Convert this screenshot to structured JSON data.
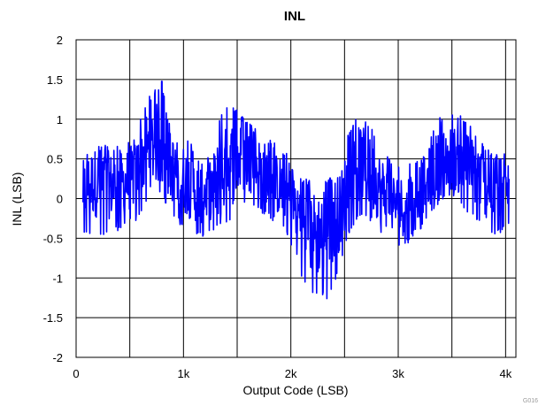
{
  "chart_data": {
    "type": "line",
    "title": "INL",
    "xlabel": "Output Code (LSB)",
    "ylabel": "INL (LSB)",
    "xlim": [
      0,
      4096
    ],
    "ylim": [
      -2,
      2
    ],
    "grid": true,
    "x_ticks": [
      0,
      1000,
      2000,
      3000,
      4000
    ],
    "x_tick_labels": [
      "0",
      "1k",
      "2k",
      "3k",
      "4k"
    ],
    "y_ticks": [
      2,
      1.5,
      1,
      0.5,
      0,
      -0.5,
      -1,
      -1.5,
      -2
    ],
    "y_tick_labels": [
      "2",
      "1.5",
      "1",
      "0.5",
      "0",
      "-0.5",
      "-1",
      "-1.5",
      "-2"
    ],
    "series_color": "#0000ff",
    "series": [
      {
        "x": [
          64,
          150,
          250,
          350,
          450,
          550,
          650,
          750,
          800,
          850,
          950,
          1050,
          1150,
          1250,
          1350,
          1450,
          1550,
          1650,
          1750,
          1850,
          1950,
          2050,
          2150,
          2250,
          2350,
          2450,
          2550,
          2650,
          2750,
          2850,
          2950,
          3050,
          3150,
          3250,
          3350,
          3450,
          3550,
          3650,
          3750,
          3850,
          3950,
          4032
        ],
        "values": [
          0.1,
          0.2,
          0.2,
          0.15,
          0.2,
          0.3,
          0.6,
          0.7,
          0.65,
          0.45,
          0.3,
          0.2,
          0.05,
          0.1,
          0.3,
          0.45,
          0.5,
          0.45,
          0.35,
          0.2,
          0.1,
          -0.1,
          -0.4,
          -0.45,
          -0.3,
          -0.2,
          0.3,
          0.45,
          0.3,
          0.1,
          -0.05,
          -0.1,
          0.05,
          0.2,
          0.4,
          0.5,
          0.5,
          0.4,
          0.3,
          0.1,
          0.1,
          0.15
        ],
        "upper": [
          0.5,
          0.7,
          0.7,
          0.65,
          0.7,
          0.8,
          1.25,
          1.4,
          1.5,
          1.0,
          0.8,
          0.75,
          0.5,
          0.55,
          1.1,
          1.2,
          1.05,
          0.9,
          0.8,
          0.7,
          0.6,
          0.3,
          0.25,
          0.2,
          0.25,
          0.35,
          0.9,
          1.1,
          0.9,
          0.65,
          0.45,
          0.35,
          0.5,
          0.6,
          1.0,
          1.05,
          1.1,
          0.95,
          0.8,
          0.6,
          0.55,
          0.6
        ],
        "lower": [
          -0.5,
          -0.45,
          -0.5,
          -0.45,
          -0.35,
          -0.3,
          -0.05,
          0.05,
          0.1,
          -0.2,
          -0.3,
          -0.45,
          -0.5,
          -0.45,
          -0.35,
          -0.25,
          -0.1,
          -0.1,
          -0.2,
          -0.3,
          -0.45,
          -0.75,
          -1.2,
          -1.2,
          -1.3,
          -0.9,
          -0.4,
          -0.2,
          -0.3,
          -0.5,
          -0.55,
          -0.65,
          -0.45,
          -0.35,
          -0.1,
          0.0,
          -0.05,
          -0.2,
          -0.3,
          -0.5,
          -0.45,
          -0.35
        ]
      }
    ]
  },
  "figure_code": "G016"
}
